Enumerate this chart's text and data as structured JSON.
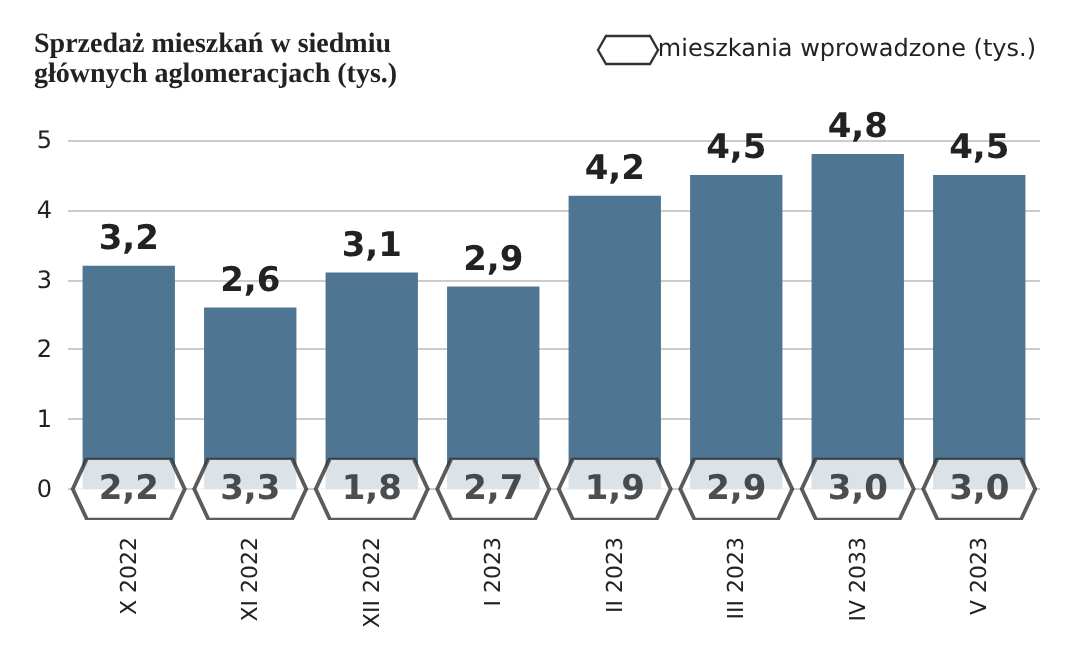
{
  "chart_data": {
    "type": "bar",
    "title": "Sprzedaż mieszkań w siedmiu głównych aglomeracjach (tys.)",
    "categories": [
      "X 2022",
      "XI 2022",
      "XII 2022",
      "I 2023",
      "II 2023",
      "III 2023",
      "IV 2033",
      "V 2023"
    ],
    "values": [
      3.2,
      2.6,
      3.1,
      2.9,
      4.2,
      4.5,
      4.8,
      4.5
    ],
    "color": "#4e7592",
    "value_labels": [
      "3,2",
      "2,6",
      "3,1",
      "2,9",
      "4,2",
      "4,5",
      "4,8",
      "4,5"
    ],
    "annotations": [
      "mieszkania wprowadzone (tys.)",
      {
        "text": "2,2",
        "x": "X 2022",
        "y": 0
      },
      {
        "text": "3,3",
        "x": "XI 2022",
        "y": 0
      },
      {
        "text": "1,8",
        "x": "XII 2022",
        "y": 0
      },
      {
        "text": "2,7",
        "x": "I 2023",
        "y": 0
      },
      {
        "text": "1,9",
        "x": "II 2023",
        "y": 0
      },
      {
        "text": "2,9",
        "x": "III 2023",
        "y": 0
      },
      {
        "text": "3,0",
        "x": "IV 2033",
        "y": 0
      },
      {
        "text": "3,0",
        "x": "V 2023",
        "y": 0
      }
    ],
    "ylim": [
      0,
      5
    ],
    "yticks": [
      0,
      1,
      2,
      3,
      4,
      5
    ],
    "grid": "y"
  }
}
